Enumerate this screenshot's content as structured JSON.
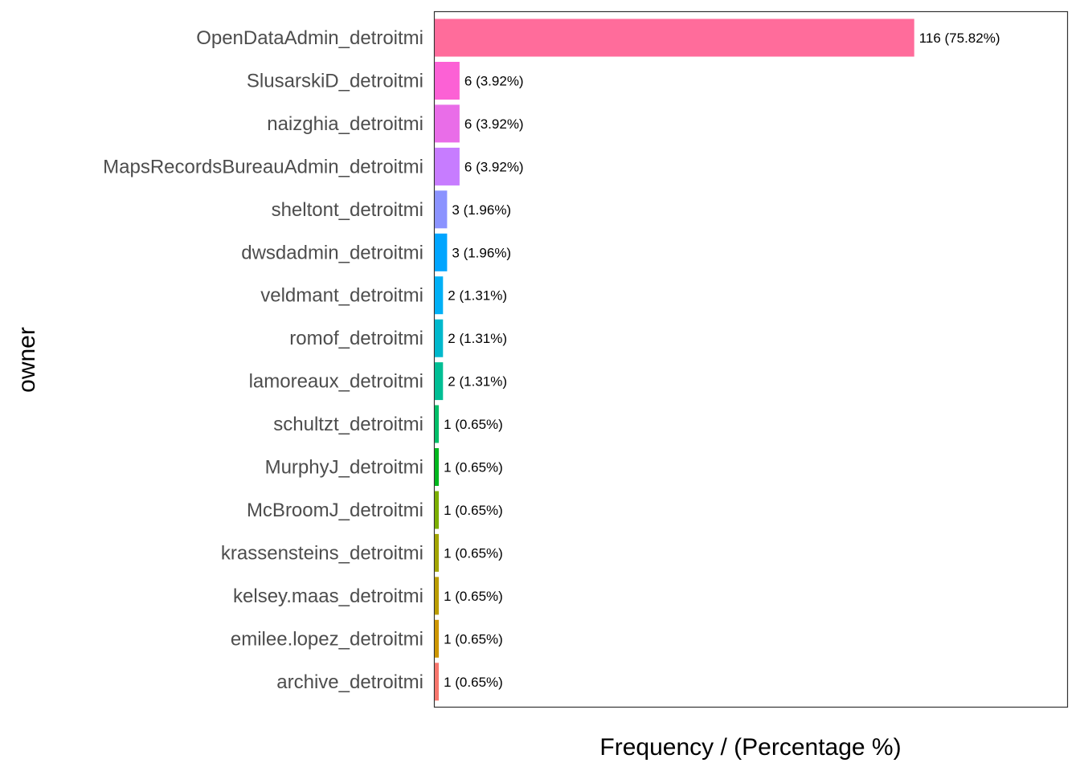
{
  "chart_data": {
    "type": "bar",
    "orientation": "horizontal",
    "xlabel": "Frequency / (Percentage %)",
    "ylabel": "owner",
    "xlim": [
      0,
      153
    ],
    "grid": false,
    "legend": "none",
    "categories": [
      "OpenDataAdmin_detroitmi",
      "SlusarskiD_detroitmi",
      "naizghia_detroitmi",
      "MapsRecordsBureauAdmin_detroitmi",
      "sheltont_detroitmi",
      "dwsdadmin_detroitmi",
      "veldmant_detroitmi",
      "romof_detroitmi",
      "lamoreaux_detroitmi",
      "schultzt_detroitmi",
      "MurphyJ_detroitmi",
      "McBroomJ_detroitmi",
      "krassensteins_detroitmi",
      "kelsey.maas_detroitmi",
      "emilee.lopez_detroitmi",
      "archive_detroitmi"
    ],
    "values": [
      116,
      6,
      6,
      6,
      3,
      3,
      2,
      2,
      2,
      1,
      1,
      1,
      1,
      1,
      1,
      1
    ],
    "data_labels": [
      "116 (75.82%)",
      "6 (3.92%)",
      "6 (3.92%)",
      "6 (3.92%)",
      "3 (1.96%)",
      "3 (1.96%)",
      "2 (1.31%)",
      "2 (1.31%)",
      "2 (1.31%)",
      "1 (0.65%)",
      "1 (0.65%)",
      "1 (0.65%)",
      "1 (0.65%)",
      "1 (0.65%)",
      "1 (0.65%)",
      "1 (0.65%)"
    ],
    "colors": [
      "#FF6C9B",
      "#FC61D5",
      "#E96DE8",
      "#C77CFF",
      "#8B93FF",
      "#00A5FF",
      "#00B0F6",
      "#00B8CC",
      "#00BE94",
      "#00BE67",
      "#00B71D",
      "#7CAE00",
      "#A3A500",
      "#BB9D00",
      "#CD9600",
      "#F8766D"
    ]
  }
}
